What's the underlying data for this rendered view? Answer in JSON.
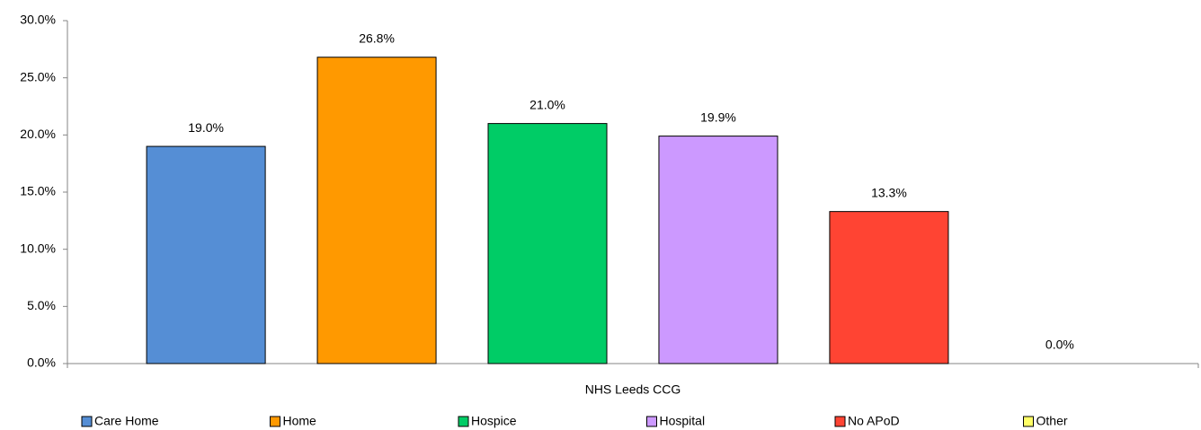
{
  "chart_data": {
    "type": "bar",
    "categories": [
      "NHS Leeds CCG"
    ],
    "series": [
      {
        "name": "Care Home",
        "color": "#558ed5",
        "values": [
          19.0
        ],
        "value_labels": [
          "19.0%"
        ]
      },
      {
        "name": "Home",
        "color": "#ff9900",
        "values": [
          26.8
        ],
        "value_labels": [
          "26.8%"
        ]
      },
      {
        "name": "Hospice",
        "color": "#00cc66",
        "values": [
          21.0
        ],
        "value_labels": [
          "21.0%"
        ]
      },
      {
        "name": "Hospital",
        "color": "#cc99ff",
        "values": [
          19.9
        ],
        "value_labels": [
          "19.9%"
        ]
      },
      {
        "name": "No APoD",
        "color": "#ff4433",
        "values": [
          13.3
        ],
        "value_labels": [
          "13.3%"
        ]
      },
      {
        "name": "Other",
        "color": "#ffff66",
        "values": [
          0.0
        ],
        "value_labels": [
          "0.0%"
        ]
      }
    ],
    "ylim": [
      0,
      30
    ],
    "yticks": [
      {
        "value": 0,
        "label": "0.0%"
      },
      {
        "value": 5,
        "label": "5.0%"
      },
      {
        "value": 10,
        "label": "10.0%"
      },
      {
        "value": 15,
        "label": "15.0%"
      },
      {
        "value": 20,
        "label": "20.0%"
      },
      {
        "value": 25,
        "label": "25.0%"
      },
      {
        "value": 30,
        "label": "30.0%"
      }
    ],
    "grid": false,
    "legend": "bottom"
  }
}
